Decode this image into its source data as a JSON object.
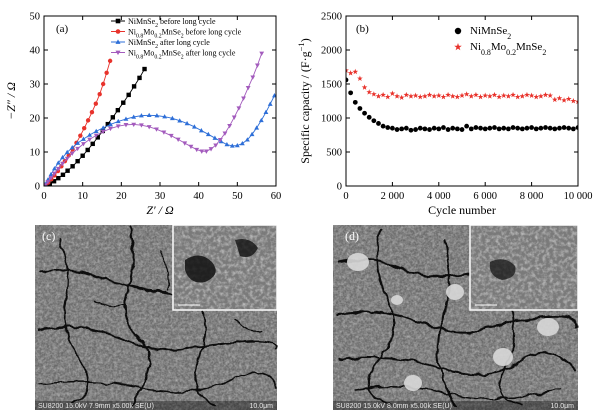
{
  "chart_data": [
    {
      "panel": "(a)",
      "type": "scatter",
      "xlabel": "Z′ / Ω",
      "ylabel": "−Z″ / Ω",
      "xlim": [
        0,
        60
      ],
      "ylim": [
        0,
        50
      ],
      "xticks": [
        0,
        10,
        20,
        30,
        40,
        50,
        60
      ],
      "yticks": [
        0,
        10,
        20,
        30,
        40,
        50
      ],
      "legend_position": "top-right",
      "series": [
        {
          "name": "NiMnSe₂ before long cycle",
          "label_parts": [
            [
              "NiMnSe",
              ""
            ],
            [
              "2",
              "sub"
            ],
            [
              " before long cycle",
              ""
            ]
          ],
          "color": "#000000",
          "marker": "square",
          "x": [
            0.5,
            1.5,
            2.6,
            3.7,
            4.9,
            6.1,
            7.4,
            8.7,
            10.0,
            11.3,
            12.6,
            13.9,
            15.2,
            16.5,
            17.8,
            19.1,
            20.5,
            21.9,
            23.3,
            24.7,
            26.0
          ],
          "y": [
            0.2,
            0.7,
            1.4,
            2.3,
            3.3,
            4.5,
            5.8,
            7.3,
            8.9,
            10.6,
            12.4,
            14.3,
            16.2,
            18.2,
            20.2,
            22.3,
            24.5,
            26.8,
            29.3,
            31.8,
            34.4
          ]
        },
        {
          "name": "Ni₀.₈Mo₀.₂MnSe₂ before long cycle",
          "label_parts": [
            [
              "Ni",
              ""
            ],
            [
              "0.8",
              "sub"
            ],
            [
              "Mo",
              ""
            ],
            [
              "0.2",
              "sub"
            ],
            [
              "MnSe",
              ""
            ],
            [
              "2",
              "sub"
            ],
            [
              " before long cycle",
              ""
            ]
          ],
          "color": "#e8322b",
          "marker": "circle",
          "x": [
            0.4,
            1.1,
            1.9,
            2.7,
            3.6,
            4.5,
            5.4,
            6.4,
            7.4,
            8.4,
            9.4,
            10.4,
            11.4,
            12.4,
            13.4,
            14.4,
            15.3,
            16.2,
            17.1
          ],
          "y": [
            0.3,
            1.0,
            2.0,
            3.1,
            4.4,
            5.8,
            7.3,
            9.0,
            10.8,
            12.7,
            14.8,
            17.0,
            19.3,
            21.7,
            24.2,
            27.0,
            30.0,
            33.3,
            36.8
          ]
        },
        {
          "name": "NiMnSe₂ after long cycle",
          "label_parts": [
            [
              "NiMnSe",
              ""
            ],
            [
              "2",
              "sub"
            ],
            [
              " after long cycle",
              ""
            ]
          ],
          "color": "#2e6fd8",
          "marker": "triangle-up",
          "x": [
            0.3,
            1.0,
            1.8,
            2.7,
            3.7,
            4.8,
            6.0,
            7.3,
            8.7,
            10.2,
            11.8,
            13.5,
            15.3,
            17.2,
            19.2,
            21.2,
            23.2,
            25.2,
            27.2,
            29.2,
            31.2,
            33.2,
            35.1,
            37.0,
            38.9,
            40.7,
            42.5,
            44.2,
            45.8,
            47.3,
            48.7,
            50.0,
            51.3,
            52.6,
            53.8,
            55.0,
            56.2,
            57.4,
            58.5,
            59.6
          ],
          "y": [
            0.5,
            1.8,
            3.4,
            5.1,
            6.8,
            8.4,
            9.9,
            11.3,
            12.6,
            13.8,
            15.0,
            16.1,
            17.1,
            18.1,
            19.0,
            19.7,
            20.3,
            20.7,
            20.8,
            20.7,
            20.4,
            19.9,
            19.2,
            18.4,
            17.4,
            16.3,
            15.2,
            14.1,
            13.1,
            12.2,
            11.8,
            11.9,
            12.5,
            13.6,
            15.2,
            17.1,
            19.3,
            21.7,
            24.1,
            26.6
          ]
        },
        {
          "name": "Ni₀.₈Mo₀.₂MnSe₂ after long cycle",
          "label_parts": [
            [
              "Ni",
              ""
            ],
            [
              "0.8",
              "sub"
            ],
            [
              "Mo",
              ""
            ],
            [
              "0.2",
              "sub"
            ],
            [
              "MnSe",
              ""
            ],
            [
              "2",
              "sub"
            ],
            [
              " after long cycle",
              ""
            ]
          ],
          "color": "#a35bbd",
          "marker": "triangle-down",
          "x": [
            0.3,
            1.0,
            1.8,
            2.7,
            3.7,
            4.8,
            6.0,
            7.3,
            8.7,
            10.2,
            11.8,
            13.5,
            15.3,
            17.2,
            19.2,
            21.2,
            23.2,
            25.2,
            27.2,
            29.1,
            31.0,
            32.9,
            34.7,
            36.4,
            38.0,
            39.5,
            40.8,
            42.0,
            43.2,
            44.4,
            45.6,
            46.8,
            48.0,
            49.2,
            50.4,
            51.6,
            52.8,
            54.0,
            55.2,
            56.3
          ],
          "y": [
            0.3,
            1.2,
            2.4,
            3.7,
            5.1,
            6.6,
            8.1,
            9.6,
            11.0,
            12.4,
            13.7,
            14.9,
            16.0,
            16.9,
            17.6,
            18.0,
            18.1,
            17.9,
            17.4,
            16.7,
            15.8,
            14.8,
            13.7,
            12.6,
            11.6,
            10.7,
            10.2,
            10.2,
            10.9,
            12.0,
            13.6,
            15.5,
            17.7,
            20.2,
            22.9,
            25.8,
            28.9,
            32.0,
            35.5,
            39.0
          ]
        }
      ]
    },
    {
      "panel": "(b)",
      "type": "scatter",
      "xlabel": "Cycle number",
      "ylabel_parts": [
        [
          "Specific capacity / (F·g",
          ""
        ],
        [
          "−1",
          "sup"
        ],
        [
          ")",
          ""
        ]
      ],
      "xlim": [
        0,
        10000
      ],
      "ylim": [
        0,
        2500
      ],
      "xticks": [
        0,
        2000,
        4000,
        6000,
        8000,
        10000
      ],
      "xtick_labels": [
        "0",
        "2 000",
        "4 000",
        "6 000",
        "8 000",
        "10 000"
      ],
      "yticks": [
        0,
        500,
        1000,
        1500,
        2000,
        2500
      ],
      "legend_position": "top-right",
      "series": [
        {
          "name": "NiMnSe₂",
          "label_parts": [
            [
              "NiMnSe",
              ""
            ],
            [
              "2",
              "sub"
            ]
          ],
          "color": "#000000",
          "marker": "circle",
          "x": [
            0,
            200,
            400,
            600,
            800,
            1000,
            1200,
            1400,
            1600,
            1800,
            2000,
            2200,
            2400,
            2600,
            2800,
            3000,
            3200,
            3400,
            3600,
            3800,
            4000,
            4200,
            4400,
            4600,
            4800,
            5000,
            5200,
            5400,
            5600,
            5800,
            6000,
            6200,
            6400,
            6600,
            6800,
            7000,
            7200,
            7400,
            7600,
            7800,
            8000,
            8200,
            8400,
            8600,
            8800,
            9000,
            9200,
            9400,
            9600,
            9800,
            10000
          ],
          "y": [
            1560,
            1370,
            1230,
            1140,
            1070,
            1010,
            960,
            920,
            880,
            860,
            850,
            830,
            840,
            850,
            820,
            830,
            850,
            840,
            830,
            850,
            840,
            860,
            830,
            850,
            840,
            830,
            880,
            840,
            860,
            850,
            840,
            850,
            860,
            840,
            850,
            840,
            860,
            850,
            840,
            850,
            860,
            840,
            850,
            860,
            850,
            840,
            850,
            860,
            850,
            840,
            860
          ]
        },
        {
          "name": "Ni₀.₈Mo₀.₂MnSe₂",
          "label_parts": [
            [
              "Ni",
              ""
            ],
            [
              "0.8",
              "sub"
            ],
            [
              "Mo",
              ""
            ],
            [
              "0.2",
              "sub"
            ],
            [
              "MnSe",
              ""
            ],
            [
              "2",
              "sub"
            ]
          ],
          "color": "#e8322b",
          "marker": "star",
          "x": [
            0,
            200,
            400,
            600,
            800,
            1000,
            1200,
            1400,
            1600,
            1800,
            2000,
            2200,
            2400,
            2600,
            2800,
            3000,
            3200,
            3400,
            3600,
            3800,
            4000,
            4200,
            4400,
            4600,
            4800,
            5000,
            5200,
            5400,
            5600,
            5800,
            6000,
            6200,
            6400,
            6600,
            6800,
            7000,
            7200,
            7400,
            7600,
            7800,
            8000,
            8200,
            8400,
            8600,
            8800,
            9000,
            9200,
            9400,
            9600,
            9800,
            10000
          ],
          "y": [
            1700,
            1660,
            1680,
            1580,
            1450,
            1380,
            1350,
            1320,
            1340,
            1310,
            1360,
            1320,
            1300,
            1340,
            1320,
            1330,
            1310,
            1320,
            1340,
            1320,
            1330,
            1310,
            1340,
            1320,
            1310,
            1330,
            1350,
            1320,
            1340,
            1310,
            1330,
            1320,
            1340,
            1310,
            1330,
            1320,
            1340,
            1310,
            1320,
            1340,
            1330,
            1310,
            1320,
            1340,
            1330,
            1270,
            1290,
            1260,
            1280,
            1250,
            1240
          ]
        }
      ]
    }
  ],
  "sem": [
    {
      "panel": "(c)",
      "footer": "SU8200 15.0kV 7.9mm x5.00k SE(U)",
      "scale": "10.0μm",
      "inset_scale": "1.00μm",
      "blobs": []
    },
    {
      "panel": "(d)",
      "footer": "SU8200 15.0kV 8.0mm x5.00k SE(U)",
      "scale": "10.0μm",
      "inset_scale": "1.00μm",
      "blobs": []
    }
  ]
}
